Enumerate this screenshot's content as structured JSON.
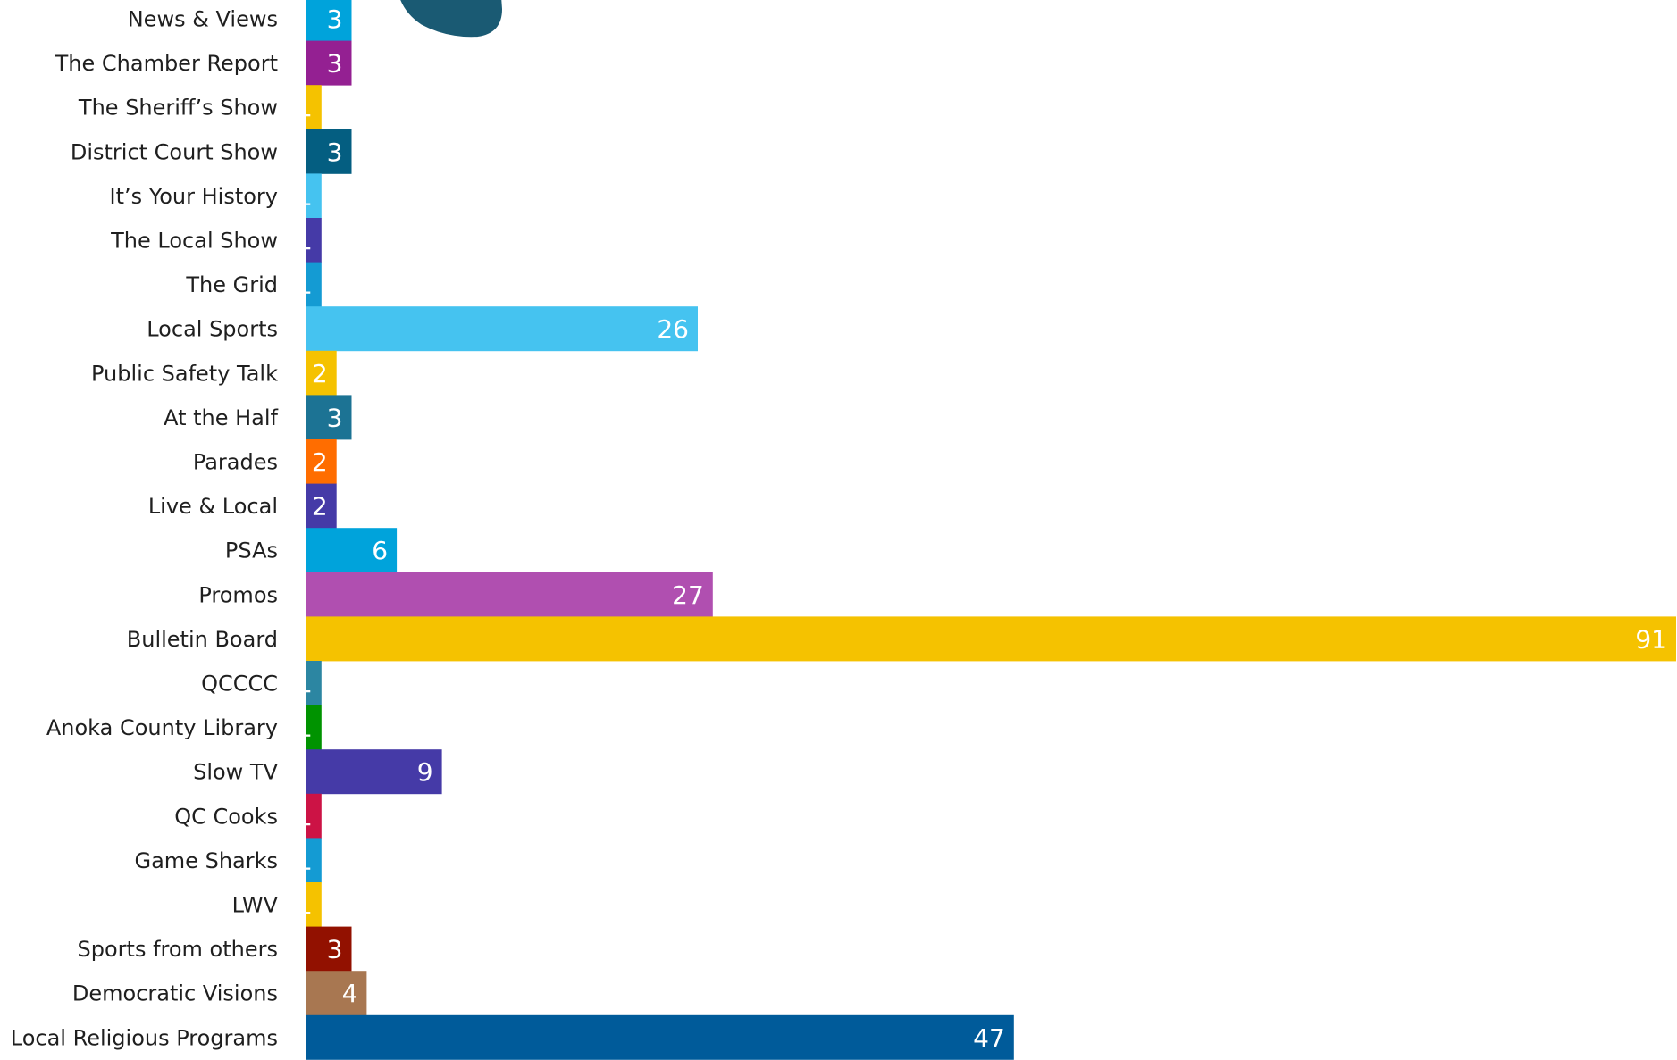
{
  "chart_data": {
    "type": "bar",
    "orientation": "horizontal",
    "title": "",
    "xlabel": "",
    "ylabel": "",
    "grid": false,
    "legend": "none",
    "xlim": [
      0,
      91
    ],
    "categories": [
      "News & Views",
      "The Chamber Report",
      "The Sheriff’s Show",
      "District Court Show",
      "It’s Your History",
      "The Local Show",
      "The Grid",
      "Local Sports",
      "Public Safety Talk",
      "At the Half",
      "Parades",
      "Live & Local",
      "PSAs",
      "Promos",
      "Bulletin Board",
      "QCCCC",
      "Anoka County Library",
      "Slow TV",
      "QC Cooks",
      "Game Sharks",
      "LWV",
      "Sports from others",
      "Democratic Visions",
      "Local Religious Programs"
    ],
    "values": [
      3,
      3,
      1,
      3,
      1,
      1,
      1,
      26,
      2,
      3,
      2,
      2,
      6,
      27,
      91,
      1,
      1,
      9,
      1,
      1,
      1,
      3,
      4,
      47
    ],
    "value_labels": [
      "3",
      "3",
      "1",
      "3",
      "1",
      "1",
      "1",
      "26",
      "2",
      "3",
      "2",
      "2",
      "6",
      "27",
      "91",
      "1",
      "1",
      "9",
      "1",
      "1",
      "1",
      "3",
      "4",
      "47"
    ],
    "colors": [
      "#00a3db",
      "#942092",
      "#f5c200",
      "#045e81",
      "#45c3f0",
      "#453aa7",
      "#149bd3",
      "#45c3f0",
      "#f5c200",
      "#1c7394",
      "#ff6d00",
      "#453aa7",
      "#00a3db",
      "#b04fb0",
      "#f5c200",
      "#2c86a2",
      "#009300",
      "#453aa7",
      "#cc1345",
      "#149bd3",
      "#f5c200",
      "#921100",
      "#a87751",
      "#005b9a"
    ]
  },
  "decorations": {
    "badge_color": "#1a5a73"
  }
}
